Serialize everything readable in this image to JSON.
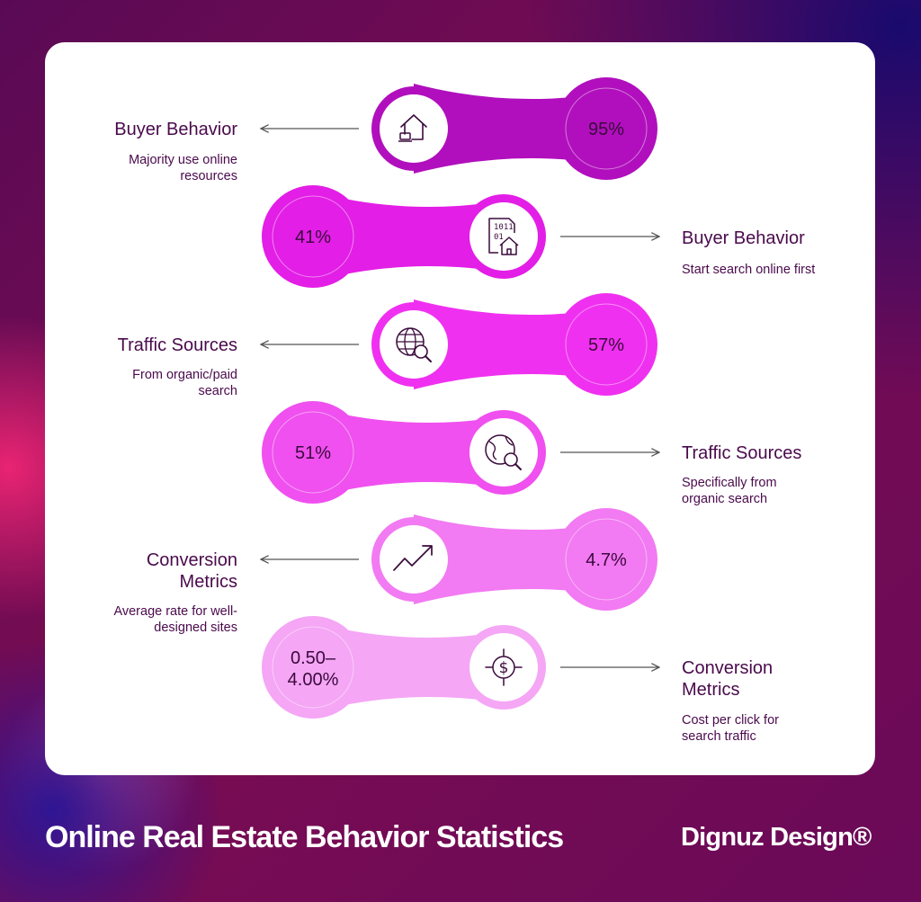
{
  "rows": [
    {
      "title": "Buyer Behavior",
      "description": "Majority use online resources",
      "value": "95%",
      "icon": "house-laptop-icon",
      "color": "#b10fbd"
    },
    {
      "title": "Buyer Behavior",
      "description": "Start search online first",
      "value": "41%",
      "icon": "house-data-icon",
      "color": "#e31ee6"
    },
    {
      "title": "Traffic Sources",
      "description": "From organic/paid search",
      "value": "57%",
      "icon": "globe-search-icon",
      "color": "#f030f0"
    },
    {
      "title": "Traffic Sources",
      "description": "Specifically from organic search",
      "value": "51%",
      "icon": "globe-magnify-icon",
      "color": "#f050ef"
    },
    {
      "title": "Conversion Metrics",
      "description": "Average rate for well-designed sites",
      "value": "4.7%",
      "icon": "trend-up-icon",
      "color": "#f27af2"
    },
    {
      "title": "Conversion Metrics",
      "description": "Cost per click for search traffic",
      "value": "0.50–4.00%",
      "icon": "dollar-target-icon",
      "color": "#f5a6f5"
    }
  ],
  "footer": {
    "title": "Online Real Estate Behavior Statistics",
    "brand": "Dignuz Design®"
  }
}
